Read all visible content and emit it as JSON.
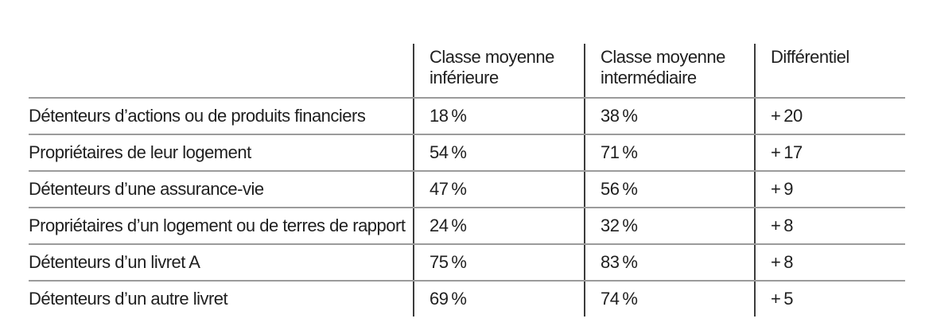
{
  "colors": {
    "text": "#1f1f1f",
    "row_line": "#9b9b9b",
    "col_line": "#3c3c3c",
    "background": "#ffffff"
  },
  "table": {
    "columns": [
      {
        "key": "label",
        "header": ""
      },
      {
        "key": "inferieure",
        "header": "Classe moyenne inférieure"
      },
      {
        "key": "intermediaire",
        "header": "Classe moyenne intermédiaire"
      },
      {
        "key": "differentiel",
        "header": "Différentiel"
      }
    ],
    "rows": [
      {
        "label": "Détenteurs d’actions ou de produits financiers",
        "inferieure": "18 %",
        "intermediaire": "38 %",
        "differentiel": "+ 20"
      },
      {
        "label": "Propriétaires de leur logement",
        "inferieure": "54 %",
        "intermediaire": "71 %",
        "differentiel": "+ 17"
      },
      {
        "label": "Détenteurs d’une assurance-vie",
        "inferieure": "47 %",
        "intermediaire": "56 %",
        "differentiel": "+ 9"
      },
      {
        "label": "Propriétaires d’un logement ou de terres de rapport",
        "inferieure": "24 %",
        "intermediaire": "32 %",
        "differentiel": "+ 8"
      },
      {
        "label": "Détenteurs d’un livret A",
        "inferieure": "75 %",
        "intermediaire": "83 %",
        "differentiel": "+ 8"
      },
      {
        "label": "Détenteurs d’un autre livret",
        "inferieure": "69 %",
        "intermediaire": "74 %",
        "differentiel": "+ 5"
      }
    ]
  }
}
